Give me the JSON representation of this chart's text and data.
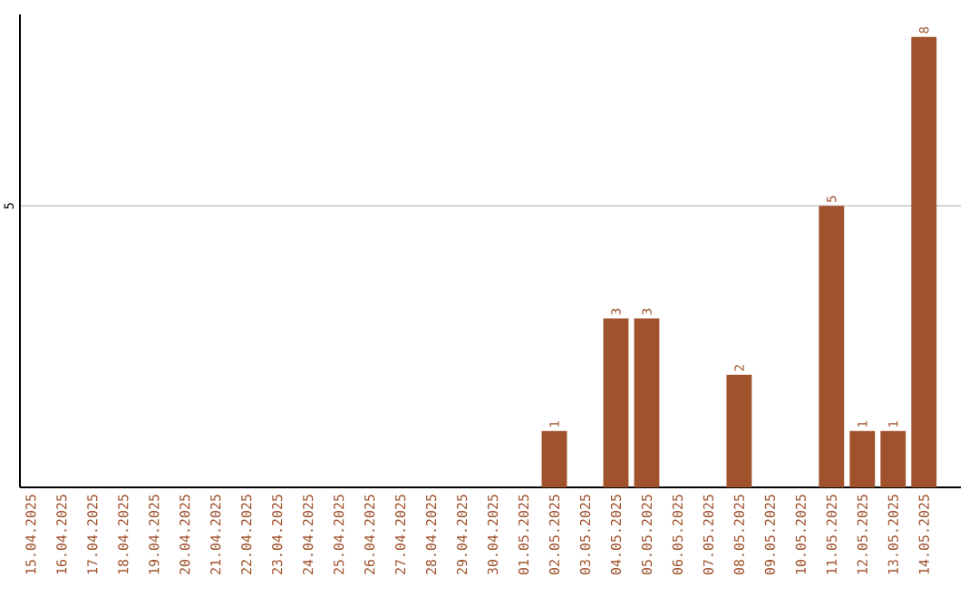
{
  "chart_data": {
    "type": "bar",
    "ylim": [
      0,
      8.4
    ],
    "categories": [
      "15.04.2025",
      "16.04.2025",
      "17.04.2025",
      "18.04.2025",
      "19.04.2025",
      "20.04.2025",
      "21.04.2025",
      "22.04.2025",
      "23.04.2025",
      "24.04.2025",
      "25.04.2025",
      "26.04.2025",
      "27.04.2025",
      "28.04.2025",
      "29.04.2025",
      "30.04.2025",
      "01.05.2025",
      "02.05.2025",
      "03.05.2025",
      "04.05.2025",
      "05.05.2025",
      "06.05.2025",
      "07.05.2025",
      "08.05.2025",
      "09.05.2025",
      "10.05.2025",
      "11.05.2025",
      "12.05.2025",
      "13.05.2025",
      "14.05.2025"
    ],
    "values": [
      null,
      null,
      null,
      null,
      null,
      null,
      null,
      null,
      null,
      null,
      null,
      null,
      null,
      null,
      null,
      null,
      null,
      1,
      null,
      3,
      3,
      null,
      null,
      2,
      null,
      null,
      5,
      1,
      1,
      8
    ],
    "value_labels": [
      null,
      null,
      null,
      null,
      null,
      null,
      null,
      null,
      null,
      null,
      null,
      null,
      null,
      null,
      null,
      null,
      null,
      "1",
      null,
      "3",
      "3",
      null,
      null,
      "2",
      null,
      null,
      "5",
      "1",
      "1",
      "8"
    ],
    "color": "#a0522d",
    "yticks": [
      5
    ],
    "grid": "y"
  }
}
